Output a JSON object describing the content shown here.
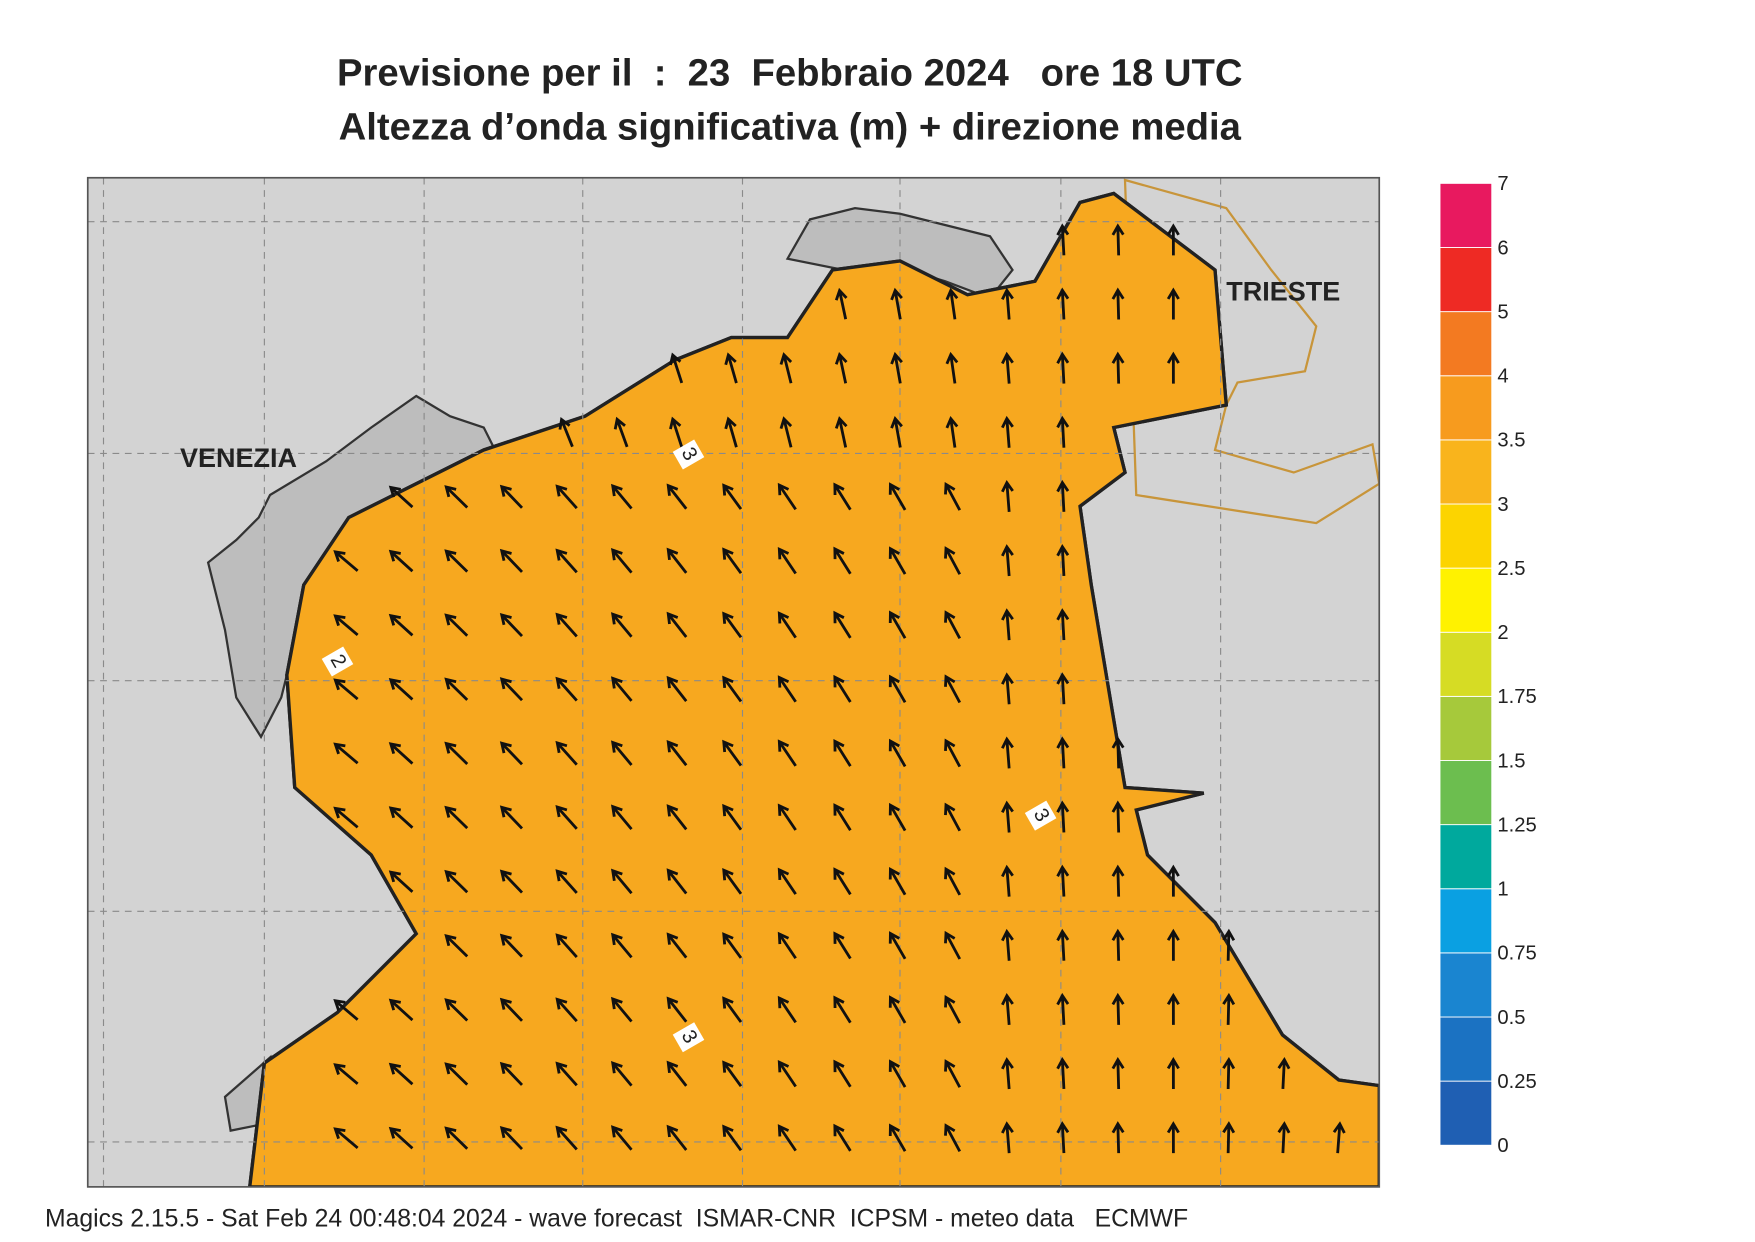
{
  "header": {
    "title": "Previsione per il  :  23  Febbraio 2024   ore 18 UTC",
    "subtitle": "Altezza d’onda significativa (m) + direzione media"
  },
  "map": {
    "places": [
      "VENEZIA",
      "TRIESTE"
    ],
    "contour_labels": [
      3,
      2,
      3,
      3
    ]
  },
  "legend": {
    "levels": [
      0,
      0.25,
      0.5,
      0.75,
      1,
      1.25,
      1.5,
      1.75,
      2,
      2.5,
      3,
      3.5,
      4,
      5,
      6,
      7
    ],
    "colors": [
      "#1f5fb3",
      "#1b72c2",
      "#1a85d0",
      "#0aa0e2",
      "#00a99d",
      "#6cbe4f",
      "#a6c93b",
      "#d6dc24",
      "#fff200",
      "#fcd400",
      "#f9b41c",
      "#f79b1e",
      "#f37a21",
      "#ee2a24",
      "#e8195f"
    ]
  },
  "footer": "Magics 2.15.5 - Sat Feb 24 00:48:04 2024 - wave forecast  ISMAR-CNR  ICPSM - meteo data   ECMWF"
}
